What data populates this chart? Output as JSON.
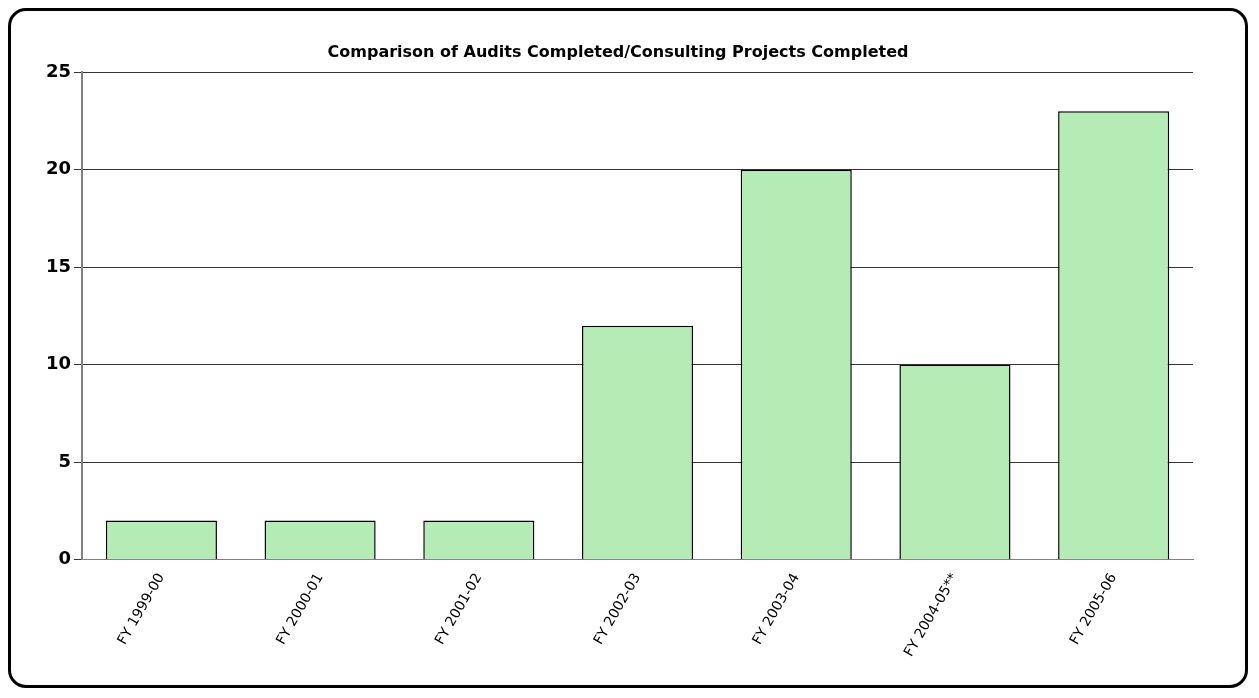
{
  "chart_data": {
    "type": "bar",
    "title": "Comparison of Audits Completed/Consulting Projects Completed",
    "categories": [
      "FY 1999-00",
      "FY 2000-01",
      "FY 2001-02",
      "FY 2002-03",
      "FY 2003-04",
      "FY 2004-05**",
      "FY 2005-06"
    ],
    "values": [
      2,
      2,
      2,
      12,
      20,
      10,
      23
    ],
    "color": "#b5ecb5",
    "ylim": [
      0,
      25
    ],
    "yticks": [
      0,
      5,
      10,
      15,
      20,
      25
    ],
    "grid": "y",
    "legend": false
  }
}
